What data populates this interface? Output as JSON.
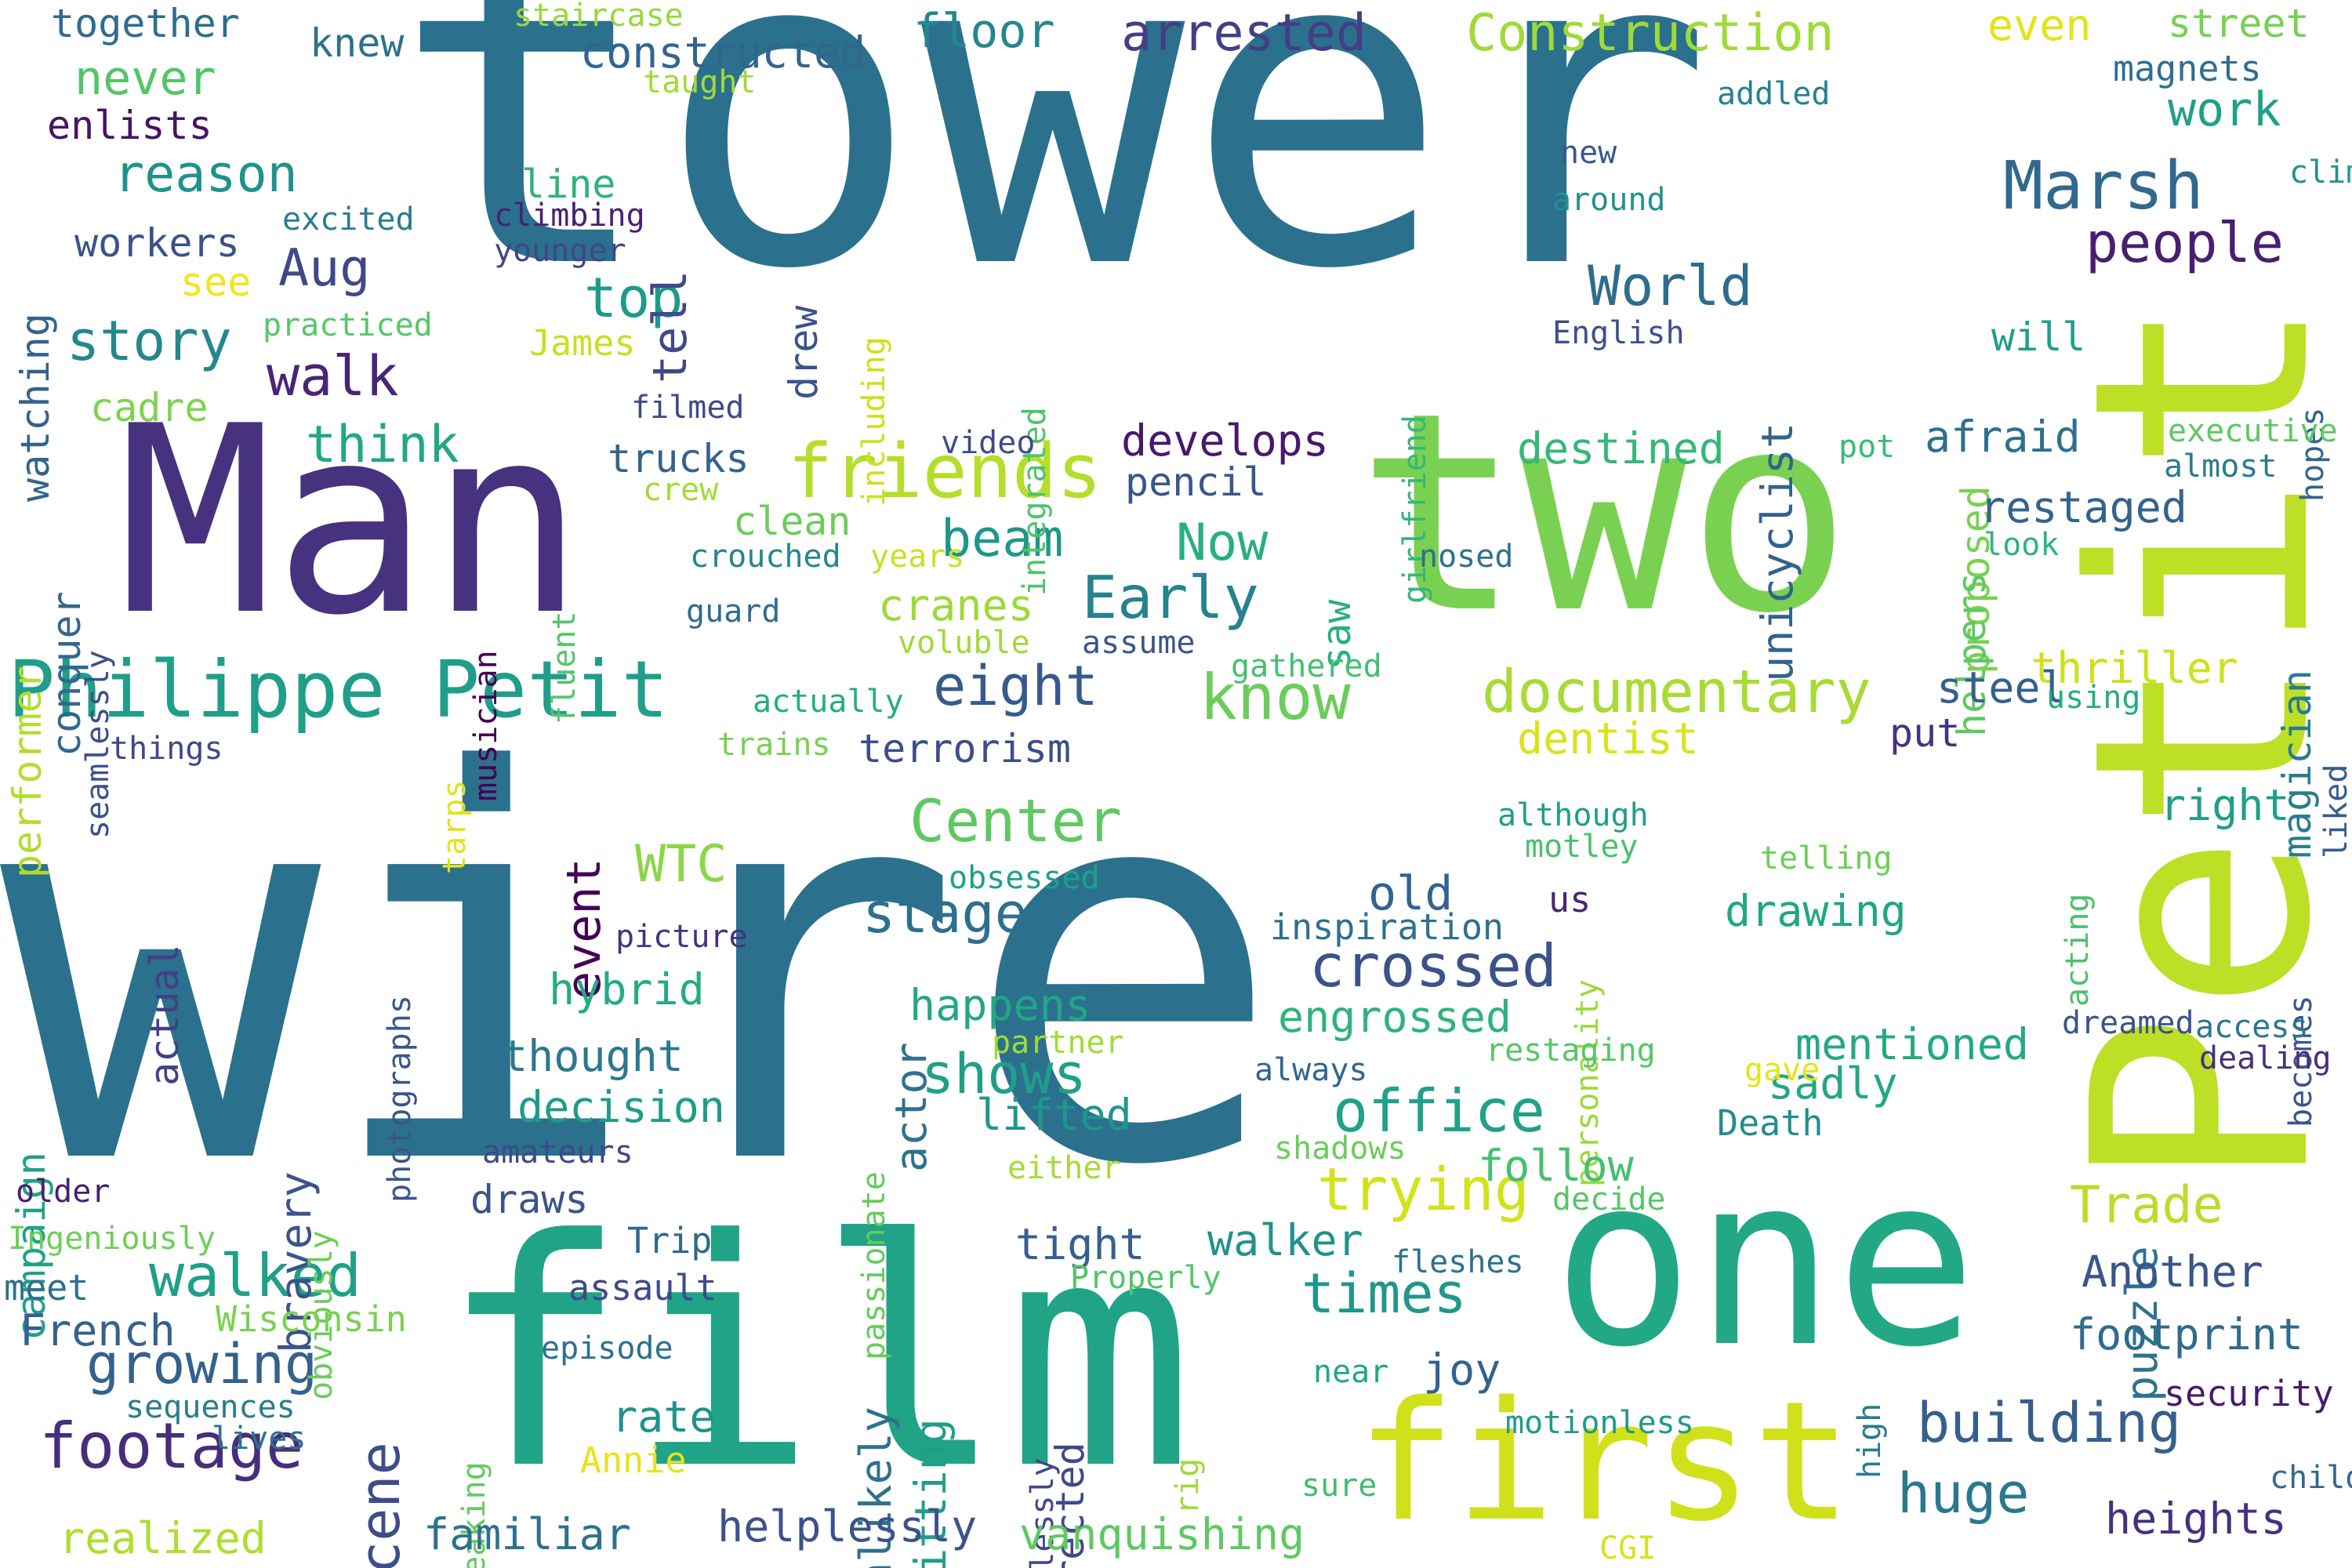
{
  "words": [
    {
      "text": "wire",
      "color": "#2b718e"
    },
    {
      "text": "tower",
      "color": "#2b718e"
    },
    {
      "text": "Man",
      "color": "#46327e"
    },
    {
      "text": "two",
      "color": "#7ad151"
    },
    {
      "text": "Petit",
      "color": "#bddf26"
    },
    {
      "text": "film",
      "color": "#20a386"
    },
    {
      "text": "one",
      "color": "#22a884"
    },
    {
      "text": "first",
      "color": "#d0e11c"
    },
    {
      "text": "Philippe Petit",
      "color": "#1f9e89"
    },
    {
      "text": "friends",
      "color": "#b5de2b"
    },
    {
      "text": "documentary",
      "color": "#a8db34"
    },
    {
      "text": "Construction",
      "color": "#a0da39"
    },
    {
      "text": "arrested",
      "color": "#433e85"
    },
    {
      "text": "floor",
      "color": "#23888e"
    },
    {
      "text": "constructed",
      "color": "#32658e"
    },
    {
      "text": "Marsh",
      "color": "#31688e"
    },
    {
      "text": "people",
      "color": "#481f70"
    },
    {
      "text": "World",
      "color": "#2f6c8e"
    },
    {
      "text": "know",
      "color": "#6ccd5a"
    },
    {
      "text": "Center",
      "color": "#5ec962"
    },
    {
      "text": "Early",
      "color": "#25838e"
    },
    {
      "text": "Now",
      "color": "#29af7f"
    },
    {
      "text": "beam",
      "color": "#1f968b"
    },
    {
      "text": "eight",
      "color": "#38598c"
    },
    {
      "text": "stage",
      "color": "#2d708e"
    },
    {
      "text": "crossed",
      "color": "#3b528b"
    },
    {
      "text": "office",
      "color": "#1fa287"
    },
    {
      "text": "trying",
      "color": "#d2e21b"
    },
    {
      "text": "Trade",
      "color": "#b8de29"
    },
    {
      "text": "times",
      "color": "#1f978b"
    },
    {
      "text": "footage",
      "color": "#472d7b"
    },
    {
      "text": "growing",
      "color": "#34618d"
    },
    {
      "text": "walked",
      "color": "#1fa088"
    },
    {
      "text": "scene",
      "color": "#3d4d8a"
    },
    {
      "text": "building",
      "color": "#355f8d"
    },
    {
      "text": "huge",
      "color": "#2a788e"
    },
    {
      "text": "WTC",
      "color": "#8bd646"
    },
    {
      "text": "shows",
      "color": "#1f9f88"
    },
    {
      "text": "story",
      "color": "#24878e"
    },
    {
      "text": "walk",
      "color": "#482576"
    },
    {
      "text": "think",
      "color": "#22a785"
    },
    {
      "text": "top",
      "color": "#1f9a8a"
    },
    {
      "text": "Aug",
      "color": "#3f4889"
    },
    {
      "text": "reason",
      "color": "#20928c"
    },
    {
      "text": "never",
      "color": "#52c569"
    },
    {
      "text": "together",
      "color": "#2e6d8e"
    },
    {
      "text": "knew",
      "color": "#2c728e"
    },
    {
      "text": "enlists",
      "color": "#471365"
    },
    {
      "text": "workers",
      "color": "#3b528b"
    },
    {
      "text": "watching",
      "color": "#33638d"
    },
    {
      "text": "tell",
      "color": "#3e4989"
    },
    {
      "text": "line",
      "color": "#2eb37c"
    },
    {
      "text": "even",
      "color": "#e2e418"
    },
    {
      "text": "street",
      "color": "#77d153"
    },
    {
      "text": "magnets",
      "color": "#2e6f8e"
    },
    {
      "text": "work",
      "color": "#1fa088"
    },
    {
      "text": "climb",
      "color": "#20928c"
    },
    {
      "text": "addled",
      "color": "#26818e"
    },
    {
      "text": "new",
      "color": "#38588c"
    },
    {
      "text": "around",
      "color": "#21918c"
    },
    {
      "text": "staircase",
      "color": "#98d83e"
    },
    {
      "text": "taught",
      "color": "#a2da37"
    },
    {
      "text": "excited",
      "color": "#287d8e"
    },
    {
      "text": "climbing",
      "color": "#482173"
    },
    {
      "text": "younger",
      "color": "#404688"
    },
    {
      "text": "see",
      "color": "#f1e51d"
    },
    {
      "text": "practiced",
      "color": "#56c667"
    },
    {
      "text": "James",
      "color": "#c8e020"
    },
    {
      "text": "cadre",
      "color": "#7fd34e"
    },
    {
      "text": "filmed",
      "color": "#3e4989"
    },
    {
      "text": "including",
      "color": "#cde11d"
    },
    {
      "text": "drew",
      "color": "#3a548c"
    },
    {
      "text": "integrated",
      "color": "#4ec36b"
    },
    {
      "text": "girlfriend",
      "color": "#35b779"
    },
    {
      "text": "English",
      "color": "#3c4f8a"
    },
    {
      "text": "unicyclist",
      "color": "#33628d"
    },
    {
      "text": "proposed",
      "color": "#7ad151"
    },
    {
      "text": "will",
      "color": "#1f9e89"
    },
    {
      "text": "hopes",
      "color": "#32658e"
    },
    {
      "text": "executive",
      "color": "#5cc863"
    },
    {
      "text": "almost",
      "color": "#287c8e"
    },
    {
      "text": "pot",
      "color": "#3aba76"
    },
    {
      "text": "afraid",
      "color": "#2d708e"
    },
    {
      "text": "destined",
      "color": "#35b779"
    },
    {
      "text": "develops",
      "color": "#48186a"
    },
    {
      "text": "pencil",
      "color": "#39568c"
    },
    {
      "text": "trucks",
      "color": "#33638d"
    },
    {
      "text": "video",
      "color": "#3e4c8a"
    },
    {
      "text": "crew",
      "color": "#a2da37"
    },
    {
      "text": "clean",
      "color": "#6ccd5a"
    },
    {
      "text": "crouched",
      "color": "#25858e"
    },
    {
      "text": "years",
      "color": "#cae11f"
    },
    {
      "text": "performer",
      "color": "#b2dd2d"
    },
    {
      "text": "conquer",
      "color": "#31678e"
    },
    {
      "text": "seamlessly",
      "color": "#3c508b"
    },
    {
      "text": "musician",
      "color": "#440154"
    },
    {
      "text": "fluent",
      "color": "#54c568"
    },
    {
      "text": "guard",
      "color": "#2f6c8e"
    },
    {
      "text": "nosed",
      "color": "#2d718e"
    },
    {
      "text": "cranes",
      "color": "#9dd93b"
    },
    {
      "text": "voluble",
      "color": "#a0da39"
    },
    {
      "text": "assume",
      "color": "#3a548c"
    },
    {
      "text": "saw",
      "color": "#29af7f"
    },
    {
      "text": "helpers",
      "color": "#5ec962"
    },
    {
      "text": "restaged",
      "color": "#33638d"
    },
    {
      "text": "look",
      "color": "#2fb47c"
    },
    {
      "text": "thriller",
      "color": "#cde11d"
    },
    {
      "text": "magician",
      "color": "#287c8e"
    },
    {
      "text": "gathered",
      "color": "#44bf70"
    },
    {
      "text": "steel",
      "color": "#34608d"
    },
    {
      "text": "using",
      "color": "#25ab82"
    },
    {
      "text": "put",
      "color": "#45337d"
    },
    {
      "text": "dentist",
      "color": "#dae319"
    },
    {
      "text": "liked",
      "color": "#365d8d"
    },
    {
      "text": "actually",
      "color": "#26ad81"
    },
    {
      "text": "terrorism",
      "color": "#3d4d8a"
    },
    {
      "text": "things",
      "color": "#3f4889"
    },
    {
      "text": "trains",
      "color": "#7ad151"
    },
    {
      "text": "tarps",
      "color": "#e2e418"
    },
    {
      "text": "photographs",
      "color": "#39568c"
    },
    {
      "text": "event",
      "color": "#440154"
    },
    {
      "text": "actual",
      "color": "#424086"
    },
    {
      "text": "obsessed",
      "color": "#1fa088"
    },
    {
      "text": "actor",
      "color": "#2c728e"
    },
    {
      "text": "old",
      "color": "#33628d"
    },
    {
      "text": "us",
      "color": "#482677"
    },
    {
      "text": "motley",
      "color": "#4ac16d"
    },
    {
      "text": "although",
      "color": "#1f9f88"
    },
    {
      "text": "right",
      "color": "#1f9e89"
    },
    {
      "text": "telling",
      "color": "#6ece58"
    },
    {
      "text": "drawing",
      "color": "#21a685"
    },
    {
      "text": "personality",
      "color": "#9bd93c"
    },
    {
      "text": "acting",
      "color": "#4ac16d"
    },
    {
      "text": "becomes",
      "color": "#3a548c"
    },
    {
      "text": "campaign",
      "color": "#1fa188"
    },
    {
      "text": "picture",
      "color": "#46327e"
    },
    {
      "text": "inspiration",
      "color": "#2d708e"
    },
    {
      "text": "hybrid",
      "color": "#25ab82"
    },
    {
      "text": "happens",
      "color": "#22a785"
    },
    {
      "text": "engrossed",
      "color": "#2eb37c"
    },
    {
      "text": "restaging",
      "color": "#56c667"
    },
    {
      "text": "mentioned",
      "color": "#23a983"
    },
    {
      "text": "dreamed",
      "color": "#3b528b"
    },
    {
      "text": "access",
      "color": "#2a768e"
    },
    {
      "text": "dealing",
      "color": "#472f7d"
    },
    {
      "text": "thought",
      "color": "#2a788e"
    },
    {
      "text": "partner",
      "color": "#a2da37"
    },
    {
      "text": "passionate",
      "color": "#65cb5e"
    },
    {
      "text": "sadly",
      "color": "#22a785"
    },
    {
      "text": "puzzle",
      "color": "#2c738e"
    },
    {
      "text": "decision",
      "color": "#1e9c89"
    },
    {
      "text": "bravery",
      "color": "#3b528b"
    },
    {
      "text": "obviously",
      "color": "#6ccd5a"
    },
    {
      "text": "always",
      "color": "#32658e"
    },
    {
      "text": "gave",
      "color": "#e5e419"
    },
    {
      "text": "amateurs",
      "color": "#3f4889"
    },
    {
      "text": "lifted",
      "color": "#1f968b"
    },
    {
      "text": "either",
      "color": "#a8db34"
    },
    {
      "text": "shadows",
      "color": "#6ccd5a"
    },
    {
      "text": "follow",
      "color": "#44bf70"
    },
    {
      "text": "decide",
      "color": "#56c667"
    },
    {
      "text": "Death",
      "color": "#228d8d"
    },
    {
      "text": "older",
      "color": "#481f70"
    },
    {
      "text": "Ingeniously",
      "color": "#6ece58"
    },
    {
      "text": "draws",
      "color": "#3b528b"
    },
    {
      "text": "Trip",
      "color": "#31678e"
    },
    {
      "text": "tight",
      "color": "#35608d"
    },
    {
      "text": "walker",
      "color": "#20928c"
    },
    {
      "text": "fleshes",
      "color": "#2d718e"
    },
    {
      "text": "unlikely",
      "color": "#2c728e"
    },
    {
      "text": "meet",
      "color": "#2e6f8e"
    },
    {
      "text": "assault",
      "color": "#3e4a89"
    },
    {
      "text": "Properly",
      "color": "#52c569"
    },
    {
      "text": "Another",
      "color": "#3a548c"
    },
    {
      "text": "French",
      "color": "#35608d"
    },
    {
      "text": "Wisconsin",
      "color": "#7ad151"
    },
    {
      "text": "sitting",
      "color": "#1f9e89"
    },
    {
      "text": "directed",
      "color": "#3f4889"
    },
    {
      "text": "joy",
      "color": "#34618d"
    },
    {
      "text": "high",
      "color": "#287d8e"
    },
    {
      "text": "footprint",
      "color": "#2f6b8e"
    },
    {
      "text": "episode",
      "color": "#2d708e"
    },
    {
      "text": "near",
      "color": "#22a785"
    },
    {
      "text": "security",
      "color": "#481a6c"
    },
    {
      "text": "sequences",
      "color": "#287c8e"
    },
    {
      "text": "lives",
      "color": "#2c728e"
    },
    {
      "text": "speaking",
      "color": "#63cb5f"
    },
    {
      "text": "endlessly",
      "color": "#3f4889"
    },
    {
      "text": "rate",
      "color": "#20928c"
    },
    {
      "text": "rig",
      "color": "#a0da39"
    },
    {
      "text": "motionless",
      "color": "#1f9a8a"
    },
    {
      "text": "heights",
      "color": "#46307e"
    },
    {
      "text": "child",
      "color": "#31688e"
    },
    {
      "text": "Annie",
      "color": "#e7e419"
    },
    {
      "text": "sure",
      "color": "#40bd72"
    },
    {
      "text": "realized",
      "color": "#b0dd2f"
    },
    {
      "text": "familiar",
      "color": "#2c728e"
    },
    {
      "text": "helplessly",
      "color": "#3b528b"
    },
    {
      "text": "vanquishing",
      "color": "#5ec962"
    },
    {
      "text": "CGI",
      "color": "#d8e219"
    }
  ]
}
